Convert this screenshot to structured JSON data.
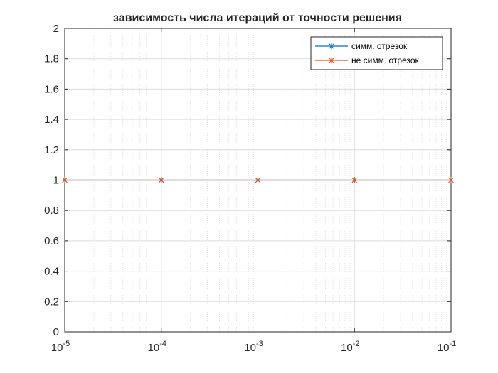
{
  "chart_data": {
    "type": "line",
    "title": "зависимость числа итераций от точности решения",
    "xlabel": "",
    "ylabel": "",
    "x_scale": "log",
    "xlim": [
      1e-05,
      0.1
    ],
    "ylim": [
      0,
      2
    ],
    "x": [
      1e-05,
      0.0001,
      0.001,
      0.01,
      0.1
    ],
    "x_tick_labels": [
      {
        "base": "10",
        "exp": "-5"
      },
      {
        "base": "10",
        "exp": "-4"
      },
      {
        "base": "10",
        "exp": "-3"
      },
      {
        "base": "10",
        "exp": "-2"
      },
      {
        "base": "10",
        "exp": "-1"
      }
    ],
    "y_ticks": [
      "0",
      "0.2",
      "0.4",
      "0.6",
      "0.8",
      "1",
      "1.2",
      "1.4",
      "1.6",
      "1.8",
      "2"
    ],
    "grid": true,
    "legend_location": "top-right",
    "series": [
      {
        "name": "симм. отрезок",
        "values": [
          1,
          1,
          1,
          1,
          1
        ],
        "color": "#0072BD",
        "marker": "*"
      },
      {
        "name": "не симм. отрезок",
        "values": [
          1,
          1,
          1,
          1,
          1
        ],
        "color": "#D95319",
        "marker": "*"
      }
    ]
  }
}
